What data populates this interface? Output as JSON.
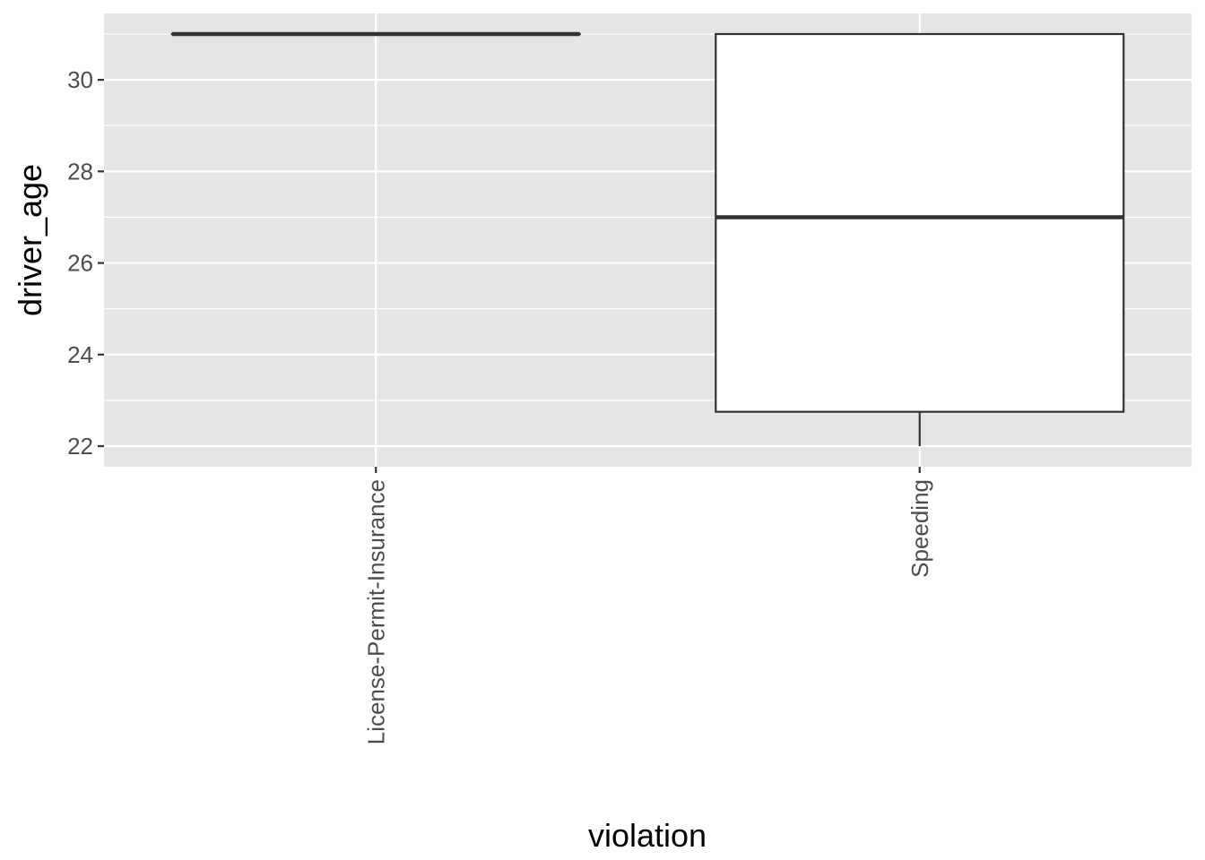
{
  "chart_data": {
    "type": "boxplot",
    "xlabel": "violation",
    "ylabel": "driver_age",
    "categories": [
      "License-Permit-Insurance",
      "Speeding"
    ],
    "boxes": [
      {
        "category": "License-Permit-Insurance",
        "min": 31,
        "q1": 31,
        "median": 31,
        "q3": 31,
        "max": 31
      },
      {
        "category": "Speeding",
        "min": 22,
        "q1": 22.75,
        "median": 27,
        "q3": 31,
        "max": 31
      }
    ],
    "ylim": [
      21.55,
      31.45
    ],
    "y_ticks": [
      22,
      24,
      26,
      28,
      30
    ],
    "y_tick_labels": [
      "22",
      "24",
      "26",
      "28",
      "30"
    ],
    "grid": true,
    "legend": "none",
    "colors": {
      "panel_background": "#e5e5e5",
      "grid_line": "#ffffff",
      "box_fill": "#ffffff",
      "box_stroke": "#333333",
      "tick_mark": "#333333",
      "tick_label": "#4d4d4d",
      "axis_title": "#000000"
    }
  }
}
